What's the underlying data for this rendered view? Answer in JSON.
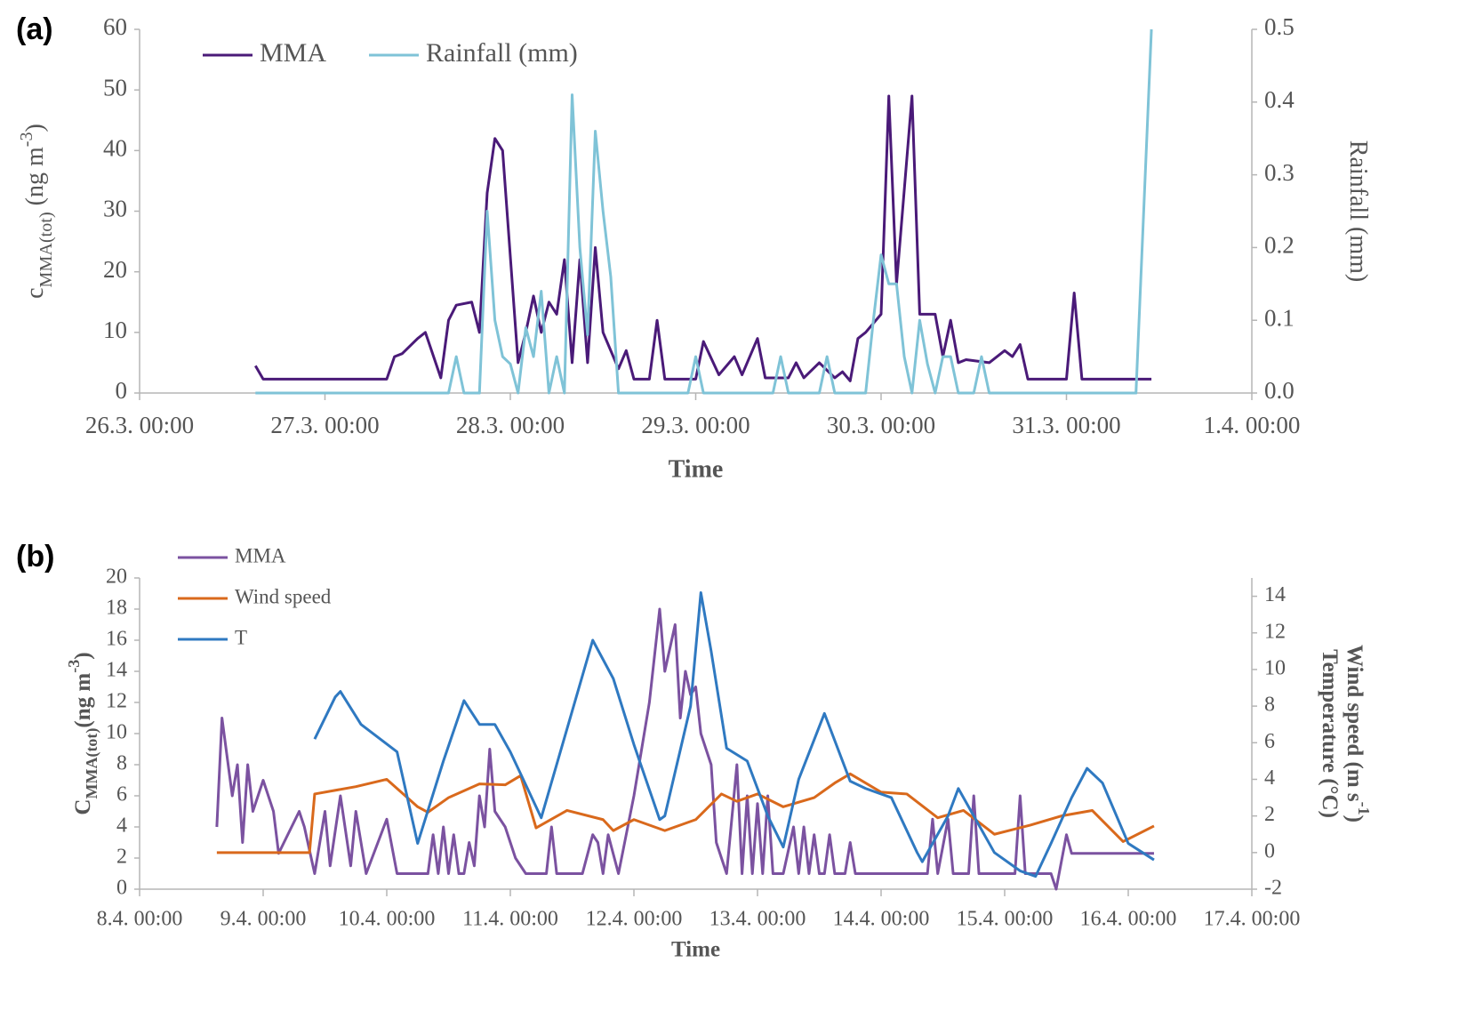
{
  "chart_data": [
    {
      "type": "line",
      "panel_label": "(a)",
      "xlabel": "Time",
      "ylabel": [
        {
          "text": "c"
        },
        {
          "sub": "MMA(tot)"
        },
        {
          "text": "  (ng m"
        },
        {
          "sup": "-3"
        },
        {
          "text": ")"
        }
      ],
      "y2label": [
        [
          {
            "text": "Rainfall  (mm)"
          }
        ]
      ],
      "xlim": [
        "26.3. 00:00",
        "1.4. 00:00"
      ],
      "xticks": [
        "26.3. 00:00",
        "27.3. 00:00",
        "28.3. 00:00",
        "29.3. 00:00",
        "30.3. 00:00",
        "31.3. 00:00",
        "1.4. 00:00"
      ],
      "ylim": [
        0,
        60
      ],
      "yticks": [
        0,
        10,
        20,
        30,
        40,
        50,
        60
      ],
      "y2lim": [
        0,
        0.5
      ],
      "y2ticks": [
        {
          "value": 0,
          "label": "0.0"
        },
        0.1,
        0.2,
        0.3,
        0.4,
        0.5
      ],
      "legend": "upper left",
      "grid": false,
      "series": [
        {
          "name": "MMA",
          "color": "#4a1a78",
          "x": [
            "26.3. 15:00",
            "26.3. 16:00",
            "27.3. 08:00",
            "27.3. 09:00",
            "27.3. 10:00",
            "27.3. 12:00",
            "27.3. 13:00",
            "27.3. 15:00",
            "27.3. 16:00",
            "27.3. 17:00",
            "27.3. 19:00",
            "27.3. 20:00",
            "27.3. 21:00",
            "27.3. 22:00",
            "27.3. 23:00",
            "28.3. 01:00",
            "28.3. 02:00",
            "28.3. 03:00",
            "28.3. 04:00",
            "28.3. 05:00",
            "28.3. 06:00",
            "28.3. 07:00",
            "28.3. 08:00",
            "28.3. 09:00",
            "28.3. 10:00",
            "28.3. 11:00",
            "28.3. 12:00",
            "28.3. 14:00",
            "28.3. 15:00",
            "28.3. 16:00",
            "28.3. 18:00",
            "28.3. 19:00",
            "28.3. 20:00",
            "29.3. 00:00",
            "29.3. 01:00",
            "29.3. 03:00",
            "29.3. 05:00",
            "29.3. 06:00",
            "29.3. 08:00",
            "29.3. 09:00",
            "29.3. 12:00",
            "29.3. 13:00",
            "29.3. 14:00",
            "29.3. 16:00",
            "29.3. 18:00",
            "29.3. 19:00",
            "29.3. 20:00",
            "29.3. 21:00",
            "29.3. 22:00",
            "30.3. 00:00",
            "30.3. 01:00",
            "30.3. 02:00",
            "30.3. 04:00",
            "30.3. 05:00",
            "30.3. 07:00",
            "30.3. 08:00",
            "30.3. 09:00",
            "30.3. 10:00",
            "30.3. 11:00",
            "30.3. 14:00",
            "30.3. 16:00",
            "30.3. 17:00",
            "30.3. 18:00",
            "30.3. 19:00",
            "31.3. 00:00",
            "31.3. 01:00",
            "31.3. 02:00",
            "31.3. 11:00"
          ],
          "values": [
            4.5,
            2.3,
            2.3,
            6,
            6.5,
            9,
            10,
            2.5,
            12,
            14.5,
            15,
            10,
            33,
            42,
            40,
            5,
            10,
            16,
            10,
            15,
            13,
            22,
            5,
            22,
            5,
            24,
            10,
            4,
            7,
            2.3,
            2.3,
            12,
            2.3,
            2.3,
            8.5,
            3,
            6,
            3,
            9,
            2.5,
            2.5,
            5,
            2.5,
            5,
            2.5,
            3.5,
            2,
            9,
            10,
            13,
            49,
            18,
            49,
            13,
            13,
            6,
            12,
            5,
            5.5,
            5,
            7,
            6,
            8,
            2.3,
            2.3,
            16.5,
            2.3,
            2.3
          ]
        },
        {
          "name": "Rainfall (mm)",
          "color": "#7fc3d7",
          "axis": "y2",
          "x": [
            "26.3. 15:00",
            "27.3. 16:00",
            "27.3. 17:00",
            "27.3. 18:00",
            "27.3. 20:00",
            "27.3. 21:00",
            "27.3. 22:00",
            "27.3. 23:00",
            "28.3. 00:00",
            "28.3. 01:00",
            "28.3. 02:00",
            "28.3. 03:00",
            "28.3. 04:00",
            "28.3. 05:00",
            "28.3. 06:00",
            "28.3. 07:00",
            "28.3. 08:00",
            "28.3. 09:00",
            "28.3. 10:00",
            "28.3. 11:00",
            "28.3. 12:00",
            "28.3. 13:00",
            "28.3. 14:00",
            "28.3. 23:00",
            "29.3. 00:00",
            "29.3. 01:00",
            "29.3. 10:00",
            "29.3. 11:00",
            "29.3. 12:00",
            "29.3. 16:00",
            "29.3. 17:00",
            "29.3. 18:00",
            "29.3. 22:00",
            "29.3. 23:00",
            "30.3. 00:00",
            "30.3. 01:00",
            "30.3. 02:00",
            "30.3. 03:00",
            "30.3. 04:00",
            "30.3. 05:00",
            "30.3. 06:00",
            "30.3. 07:00",
            "30.3. 08:00",
            "30.3. 09:00",
            "30.3. 10:00",
            "30.3. 12:00",
            "30.3. 13:00",
            "30.3. 14:00",
            "31.3. 09:00",
            "31.3. 11:00"
          ],
          "values": [
            0,
            0,
            0.05,
            0,
            0,
            0.25,
            0.1,
            0.05,
            0.04,
            0,
            0.09,
            0.05,
            0.14,
            0,
            0.05,
            0,
            0.41,
            0.2,
            0.08,
            0.36,
            0.25,
            0.16,
            0,
            0,
            0.05,
            0,
            0,
            0.05,
            0,
            0,
            0.05,
            0,
            0,
            0.1,
            0.19,
            0.15,
            0.15,
            0.05,
            0,
            0.1,
            0.04,
            0,
            0.05,
            0.05,
            0,
            0,
            0.05,
            0,
            0,
            0.5
          ]
        }
      ]
    },
    {
      "type": "line",
      "panel_label": "(b)",
      "xlabel": "Time",
      "ylabel": [
        {
          "text": "C"
        },
        {
          "sub": "MMA(tot)"
        },
        {
          "text": "(ng m"
        },
        {
          "sup": "-3"
        },
        {
          "text": ")"
        }
      ],
      "y2label": [
        [
          {
            "text": "Wind speed (m s"
          },
          {
            "sup": "-1"
          },
          {
            "text": ")"
          }
        ],
        [
          {
            "text": "Temperature (°C)"
          }
        ]
      ],
      "xlim": [
        "8.4. 00:00",
        "17.4. 00:00"
      ],
      "xticks": [
        "8.4. 00:00",
        "9.4. 00:00",
        "10.4. 00:00",
        "11.4. 00:00",
        "12.4. 00:00",
        "13.4. 00:00",
        "14.4. 00:00",
        "15.4. 00:00",
        "16.4. 00:00",
        "17.4. 00:00"
      ],
      "ylim": [
        0,
        20
      ],
      "yticks": [
        0,
        2,
        4,
        6,
        8,
        10,
        12,
        14,
        16,
        18,
        20
      ],
      "y2lim": [
        -2,
        15
      ],
      "y2ticks": [
        -2,
        0,
        2,
        4,
        6,
        8,
        10,
        12,
        14
      ],
      "legend": "upper left",
      "grid": false,
      "series": [
        {
          "name": "MMA",
          "color": "#7b52a0",
          "x": [
            "8.4. 15:00",
            "8.4. 16:00",
            "8.4. 18:00",
            "8.4. 19:00",
            "8.4. 20:00",
            "8.4. 21:00",
            "8.4. 22:00",
            "9.4. 00:00",
            "9.4. 02:00",
            "9.4. 03:00",
            "9.4. 07:00",
            "9.4. 08:00",
            "9.4. 10:00",
            "9.4. 12:00",
            "9.4. 13:00",
            "9.4. 15:00",
            "9.4. 17:00",
            "9.4. 18:00",
            "9.4. 20:00",
            "10.4. 00:00",
            "10.4. 02:00",
            "10.4. 08:00",
            "10.4. 09:00",
            "10.4. 10:00",
            "10.4. 11:00",
            "10.4. 12:00",
            "10.4. 13:00",
            "10.4. 14:00",
            "10.4. 15:00",
            "10.4. 16:00",
            "10.4. 17:00",
            "10.4. 18:00",
            "10.4. 19:00",
            "10.4. 20:00",
            "10.4. 21:00",
            "10.4. 23:00",
            "11.4. 01:00",
            "11.4. 03:00",
            "11.4. 07:00",
            "11.4. 08:00",
            "11.4. 09:00",
            "11.4. 14:00",
            "11.4. 16:00",
            "11.4. 17:00",
            "11.4. 18:00",
            "11.4. 19:00",
            "11.4. 21:00",
            "12.4. 00:00",
            "12.4. 03:00",
            "12.4. 05:00",
            "12.4. 06:00",
            "12.4. 08:00",
            "12.4. 09:00",
            "12.4. 10:00",
            "12.4. 11:00",
            "12.4. 12:00",
            "12.4. 13:00",
            "12.4. 15:00",
            "12.4. 16:00",
            "12.4. 18:00",
            "12.4. 20:00",
            "12.4. 21:00",
            "12.4. 22:00",
            "12.4. 23:00",
            "13.4. 00:00",
            "13.4. 01:00",
            "13.4. 02:00",
            "13.4. 03:00",
            "13.4. 05:00",
            "13.4. 07:00",
            "13.4. 08:00",
            "13.4. 09:00",
            "13.4. 10:00",
            "13.4. 11:00",
            "13.4. 12:00",
            "13.4. 13:00",
            "13.4. 14:00",
            "13.4. 15:00",
            "13.4. 17:00",
            "13.4. 18:00",
            "13.4. 19:00",
            "14.4. 09:00",
            "14.4. 10:00",
            "14.4. 11:00",
            "14.4. 13:00",
            "14.4. 14:00",
            "14.4. 17:00",
            "14.4. 18:00",
            "14.4. 19:00",
            "15.4. 02:00",
            "15.4. 03:00",
            "15.4. 04:00",
            "15.4. 09:00",
            "15.4. 10:00",
            "15.4. 12:00",
            "15.4. 13:00",
            "16.4. 05:00"
          ],
          "values": [
            4,
            11,
            6,
            8,
            3,
            8,
            5,
            7,
            5,
            2.3,
            5,
            4,
            1,
            5,
            1.5,
            6,
            1.5,
            5,
            1,
            4.5,
            1,
            1,
            3.5,
            1,
            4,
            1,
            3.5,
            1,
            1,
            3,
            1.5,
            6,
            4,
            9,
            5,
            4,
            2,
            1,
            1,
            4,
            1,
            1,
            3.5,
            3,
            1,
            3.5,
            1,
            6,
            12,
            18,
            14,
            17,
            11,
            14,
            12.5,
            13,
            10,
            8,
            3,
            1,
            8,
            1,
            6,
            1,
            5.5,
            1,
            6,
            1,
            1,
            4,
            1,
            4,
            1,
            3.5,
            1,
            1,
            3.5,
            1,
            1,
            3,
            1,
            1,
            4.5,
            1,
            4.5,
            1,
            1,
            6,
            1,
            1,
            6,
            1,
            1,
            0,
            3.5,
            2.3,
            2.3
          ]
        },
        {
          "name": "Wind speed",
          "color": "#d9691c",
          "axis": "y2",
          "x": [
            "8.4. 15:00",
            "9.4. 09:00",
            "9.4. 10:00",
            "9.4. 18:00",
            "10.4. 00:00",
            "10.4. 06:00",
            "10.4. 08:00",
            "10.4. 12:00",
            "10.4. 18:00",
            "10.4. 23:00",
            "11.4. 02:00",
            "11.4. 05:00",
            "11.4. 11:00",
            "11.4. 18:00",
            "11.4. 20:00",
            "12.4. 00:00",
            "12.4. 06:00",
            "12.4. 12:00",
            "12.4. 17:00",
            "12.4. 20:00",
            "13.4. 00:00",
            "13.4. 05:00",
            "13.4. 11:00",
            "13.4. 15:00",
            "13.4. 18:00",
            "14.4. 00:00",
            "14.4. 05:00",
            "14.4. 11:00",
            "14.4. 16:00",
            "14.4. 22:00",
            "15.4. 05:00",
            "15.4. 11:00",
            "15.4. 17:00",
            "15.4. 23:00",
            "16.4. 05:00"
          ],
          "values": [
            0,
            0,
            3.2,
            3.6,
            4,
            2.5,
            2.2,
            3,
            3.75,
            3.7,
            4.2,
            1.35,
            2.3,
            1.8,
            1.2,
            1.8,
            1.2,
            1.8,
            3.2,
            2.8,
            3.2,
            2.5,
            3,
            3.8,
            4.3,
            3.3,
            3.2,
            1.9,
            2.3,
            1,
            1.5,
            2,
            2.3,
            0.6,
            1.45
          ]
        },
        {
          "name": "T",
          "color": "#2f79c1",
          "axis": "y2",
          "x": [
            "9.4. 10:00",
            "9.4. 14:00",
            "9.4. 15:00",
            "9.4. 19:00",
            "10.4. 02:00",
            "10.4. 06:00",
            "10.4. 11:00",
            "10.4. 15:00",
            "10.4. 18:00",
            "10.4. 21:00",
            "11.4. 00:00",
            "11.4. 06:00",
            "11.4. 16:00",
            "11.4. 20:00",
            "12.4. 00:00",
            "12.4. 05:00",
            "12.4. 06:00",
            "12.4. 11:00",
            "12.4. 13:00",
            "12.4. 15:00",
            "12.4. 18:00",
            "12.4. 22:00",
            "13.4. 02:00",
            "13.4. 05:00",
            "13.4. 08:00",
            "13.4. 13:00",
            "13.4. 18:00",
            "13.4. 21:00",
            "14.4. 02:00",
            "14.4. 07:00",
            "14.4. 08:00",
            "14.4. 13:00",
            "14.4. 15:00",
            "14.4. 18:00",
            "14.4. 22:00",
            "15.4. 03:00",
            "15.4. 06:00",
            "15.4. 09:00",
            "15.4. 13:00",
            "15.4. 16:00",
            "15.4. 19:00",
            "16.4. 00:00",
            "16.4. 05:00"
          ],
          "values": [
            6.2,
            8.5,
            8.8,
            7,
            5.5,
            0.5,
            5,
            8.3,
            7,
            7,
            5.5,
            1.9,
            11.6,
            9.5,
            5.9,
            1.8,
            2,
            8,
            14.2,
            11,
            5.7,
            5,
            2,
            0.3,
            4,
            7.6,
            3.9,
            3.5,
            3,
            0,
            -0.5,
            2,
            3.5,
            2,
            0,
            -1,
            -1.3,
            0.5,
            3,
            4.6,
            3.8,
            0.5,
            -0.4
          ]
        }
      ]
    }
  ]
}
